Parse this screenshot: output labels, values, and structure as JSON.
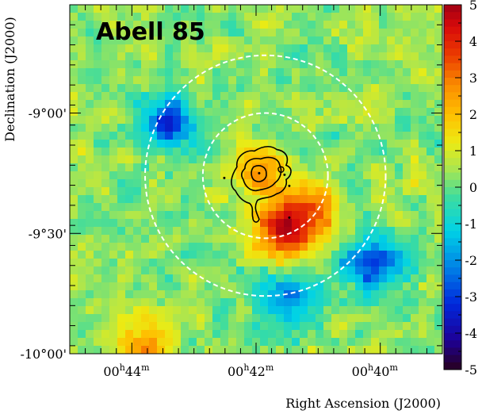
{
  "chart_data": {
    "type": "heatmap",
    "title": "Abell 85",
    "xlabel": "Right Ascension (J2000)",
    "ylabel": "Declination (J2000)",
    "x_ticks": [
      {
        "value": 44,
        "hours": "00",
        "h": "h",
        "minutes": "44",
        "m": "m"
      },
      {
        "value": 42,
        "hours": "00",
        "h": "h",
        "minutes": "42",
        "m": "m"
      },
      {
        "value": 40,
        "hours": "00",
        "h": "h",
        "minutes": "40",
        "m": "m"
      }
    ],
    "x_range_min": [
      45.0,
      39.0
    ],
    "y_ticks": [
      {
        "value": -9.0,
        "label": "-9°00'"
      },
      {
        "value": -9.5,
        "label": "-9°30'"
      },
      {
        "value": -10.0,
        "label": "-10°00'"
      }
    ],
    "y_range_deg": [
      -8.55,
      -10.0
    ],
    "colorbar": {
      "range": [
        -5,
        5
      ],
      "ticks": [
        "5",
        "4",
        "3",
        "2",
        "1",
        "0",
        "-1",
        "-2",
        "-3",
        "-4",
        "-5"
      ]
    },
    "dashed_circles": [
      {
        "center_ra_min": 41.85,
        "center_dec_deg": -9.26,
        "radius_deg": 0.26
      },
      {
        "center_ra_min": 41.85,
        "center_dec_deg": -9.26,
        "radius_deg": 0.5
      }
    ],
    "hotspots": [
      {
        "ra_min": 41.95,
        "dec_deg": -9.25,
        "value": 2.0
      },
      {
        "ra_min": 41.2,
        "dec_deg": -9.42,
        "value": 3.0
      },
      {
        "ra_min": 41.6,
        "dec_deg": -9.5,
        "value": 3.0
      },
      {
        "ra_min": 40.1,
        "dec_deg": -9.62,
        "value": -3.5
      },
      {
        "ra_min": 43.4,
        "dec_deg": -9.04,
        "value": -3.0
      },
      {
        "ra_min": 41.5,
        "dec_deg": -9.78,
        "value": -2.5
      },
      {
        "ra_min": 43.8,
        "dec_deg": -9.96,
        "value": 2.0
      }
    ],
    "grid": false,
    "colors": {
      "contour": "#000000",
      "circle": "#ffffff"
    }
  }
}
